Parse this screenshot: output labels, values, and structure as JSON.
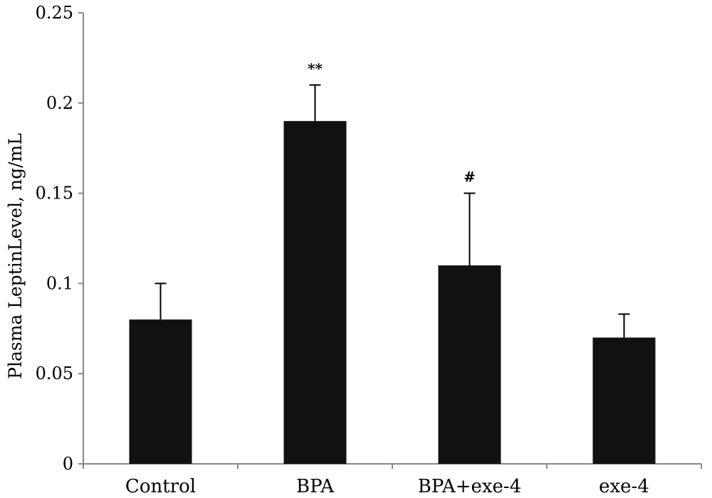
{
  "chart_data": {
    "type": "bar",
    "title": "",
    "xlabel": "",
    "ylabel": "Plasma LeptinLevel, ng/mL",
    "ylim": [
      0,
      0.25
    ],
    "yticks": [
      0,
      0.05,
      0.1,
      0.15,
      0.2,
      0.25
    ],
    "ytick_labels": [
      "0",
      "0.05",
      "0.1",
      "0.15",
      "0.2",
      "0.25"
    ],
    "categories": [
      "Control",
      "BPA",
      "BPA+exe-4",
      "exe-4"
    ],
    "values": [
      0.08,
      0.19,
      0.11,
      0.07
    ],
    "error_upper": [
      0.02,
      0.02,
      0.04,
      0.013
    ],
    "annotations": [
      "",
      "**",
      "#",
      ""
    ],
    "grid": false,
    "legend": "none",
    "bar_color": "#111111",
    "axis_color": "#888888"
  }
}
